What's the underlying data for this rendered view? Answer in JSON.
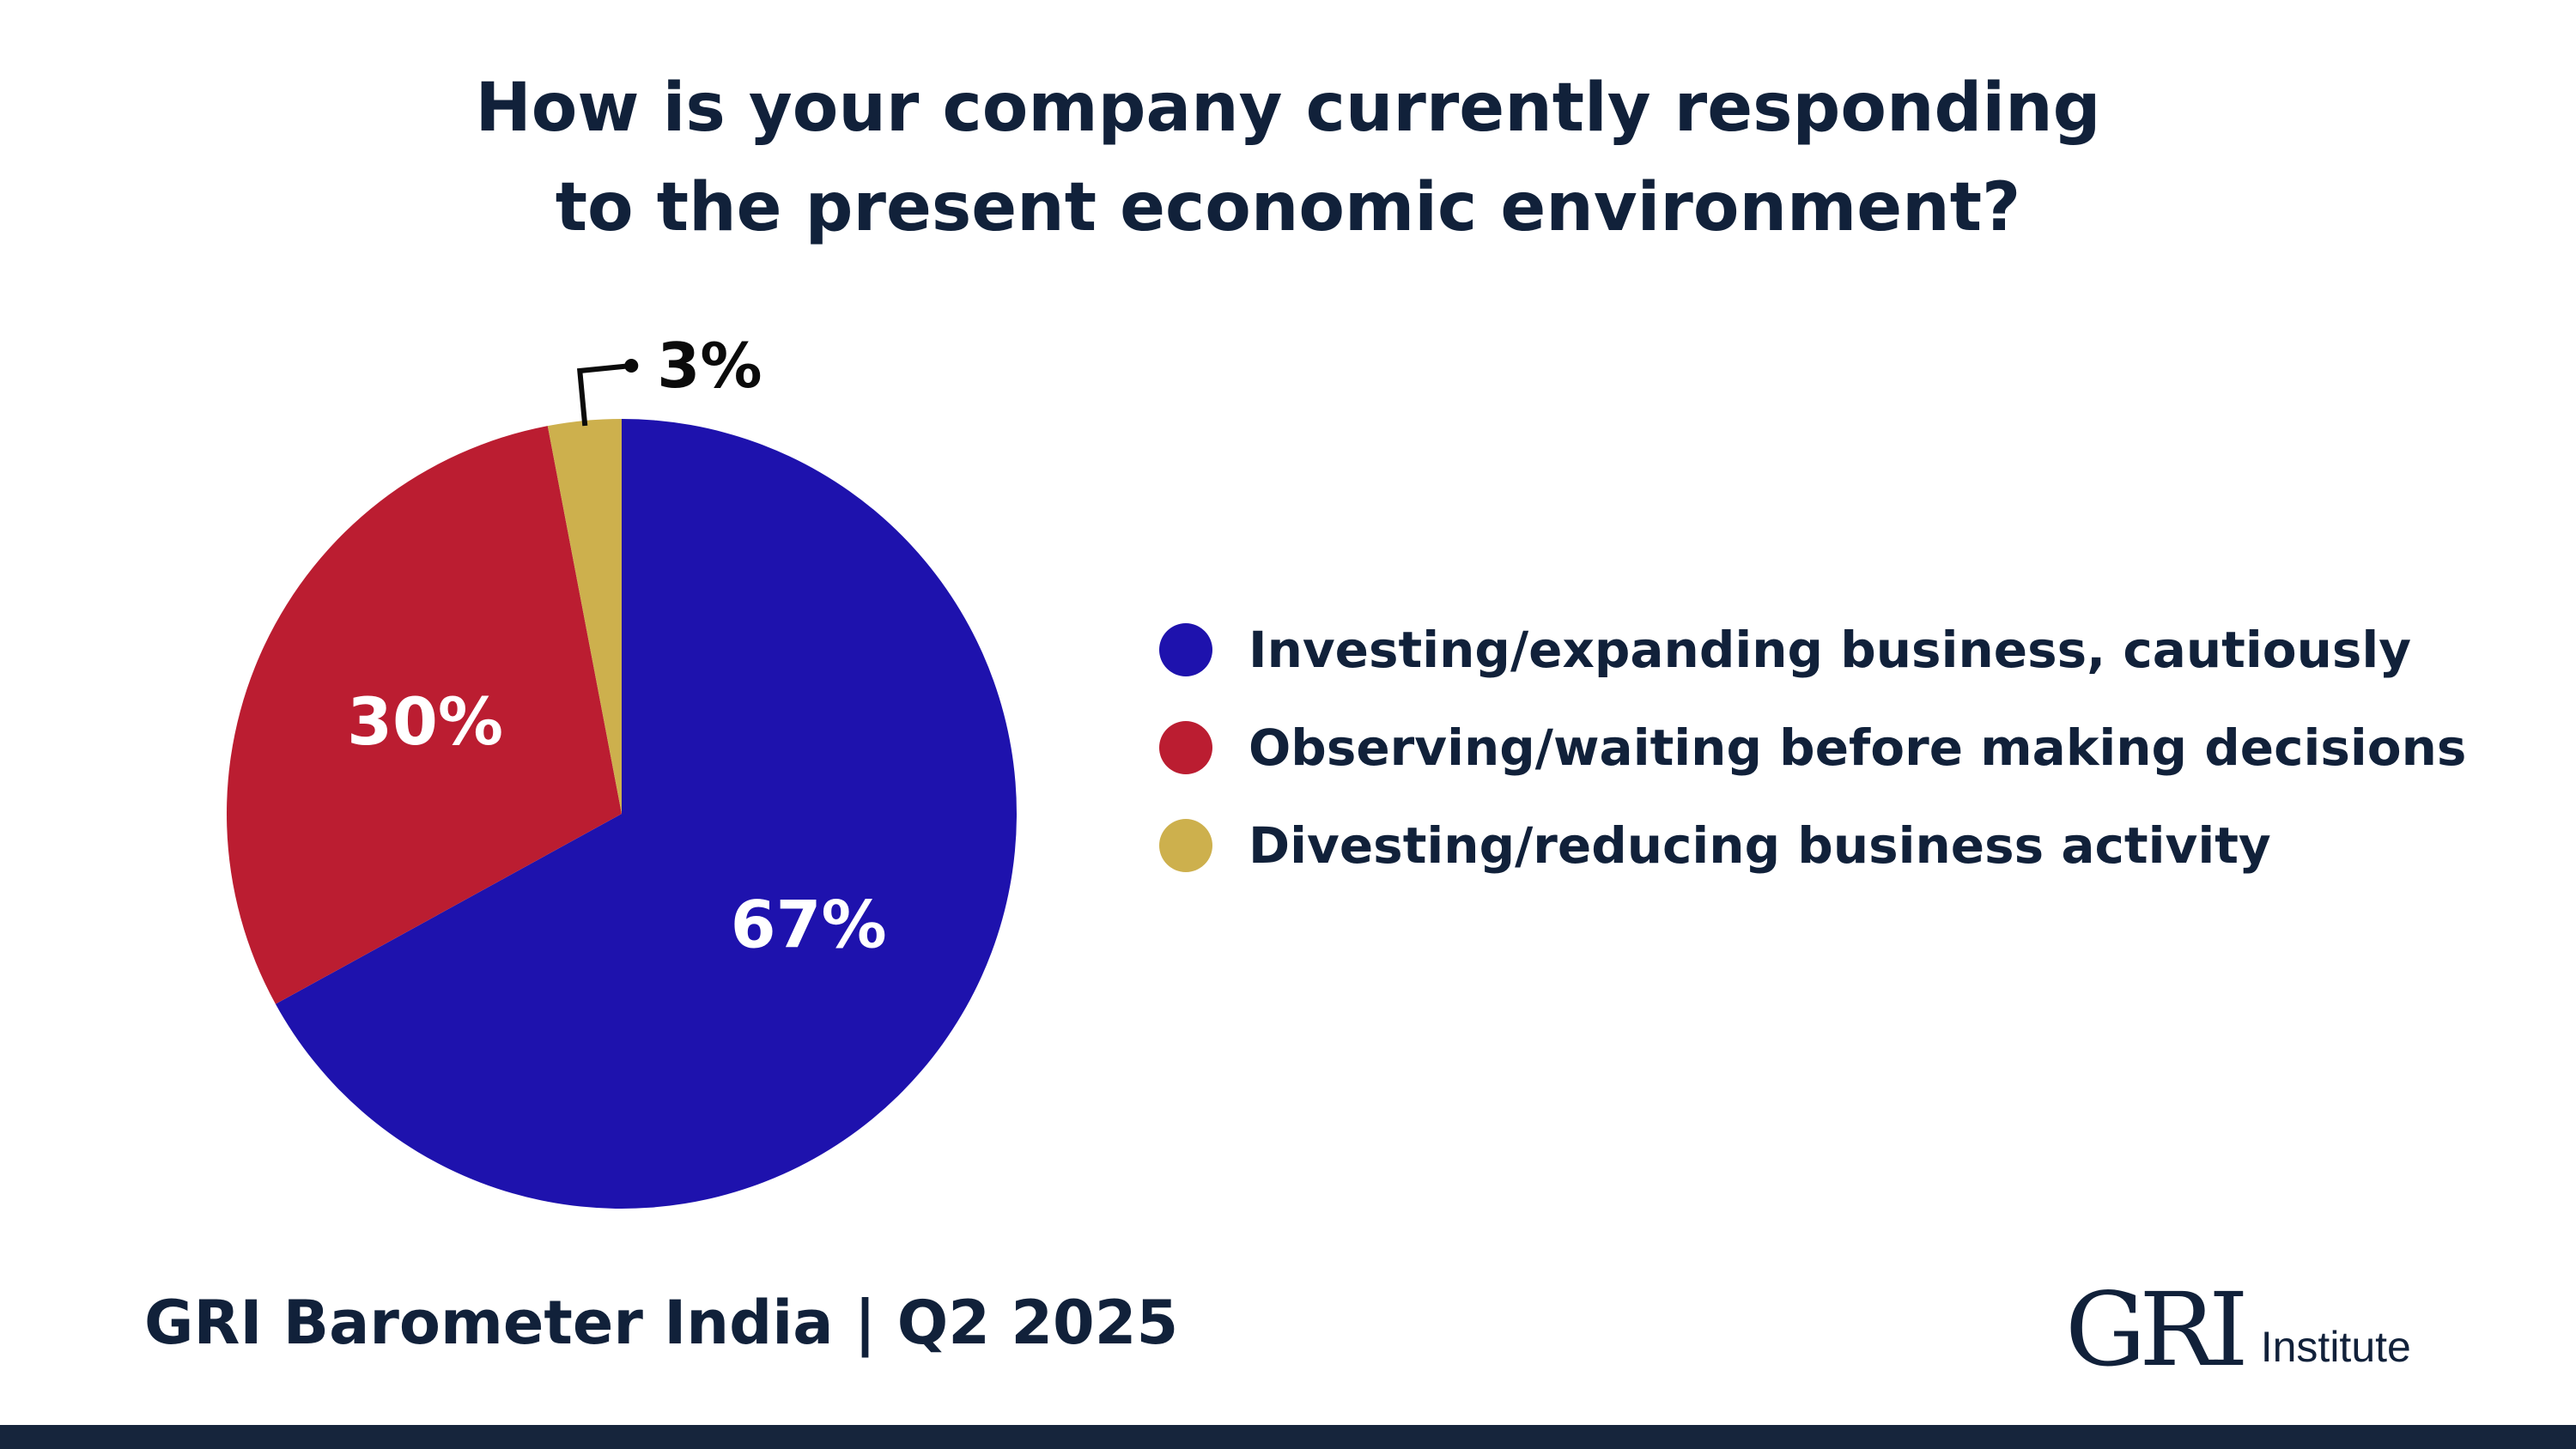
{
  "chart_data": {
    "type": "pie",
    "title_lines": [
      "How is your company currently responding",
      "to the present economic environment?"
    ],
    "slices": [
      {
        "name": "Investing/expanding business, cautiously",
        "value": 67,
        "label": "67%",
        "color": "#1e12ad"
      },
      {
        "name": "Observing/waiting before making decisions",
        "value": 30,
        "label": "30%",
        "color": "#bb1d31"
      },
      {
        "name": "Divesting/reducing business activity",
        "value": 3,
        "label": "3%",
        "color": "#cdb04d"
      }
    ],
    "legend_position": "right"
  },
  "footer": {
    "source": "GRI Barometer India | Q2 2025",
    "brand_mark": "GRI",
    "brand_sub": "Institute"
  }
}
